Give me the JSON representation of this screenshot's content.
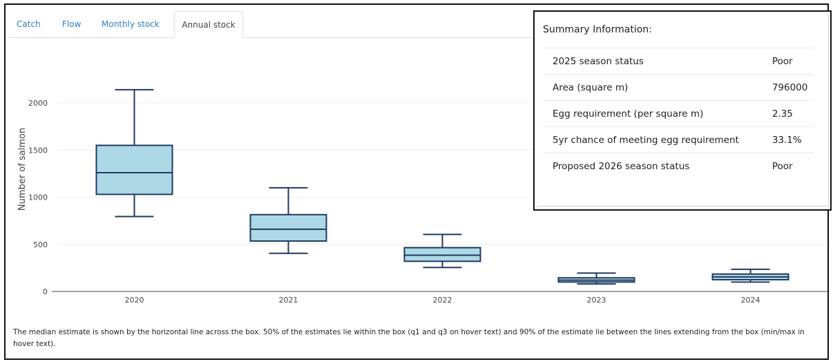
{
  "tabs": [
    {
      "label": "Catch"
    },
    {
      "label": "Flow"
    },
    {
      "label": "Monthly stock"
    },
    {
      "label": "Annual stock"
    }
  ],
  "active_tab": "Annual stock",
  "summary": {
    "title": "Summary Information:",
    "rows": [
      {
        "label": "2025 season status",
        "value": "Poor"
      },
      {
        "label": "Area (square m)",
        "value": "796000"
      },
      {
        "label": "Egg requirement (per square m)",
        "value": "2.35"
      },
      {
        "label": "5yr chance of meeting egg requirement",
        "value": "33.1%"
      },
      {
        "label": "Proposed 2026 season status",
        "value": "Poor"
      }
    ]
  },
  "note": "The median estimate is shown by the horizontal line across the box. 50% of the estimates lie within the box (q1 and q3 on hover text) and 90% of the estimate lie between the lines extending from the box (min/max in hover text).",
  "chart_data": {
    "type": "box",
    "ylabel": "Number of salmon",
    "yticks": [
      0,
      500,
      1000,
      1500,
      2000
    ],
    "ylim": [
      0,
      2300
    ],
    "grid": true,
    "box_fill": "#add8e6",
    "box_stroke": "#1f3a5f",
    "categories": [
      "2020",
      "2021",
      "2022",
      "2023",
      "2024"
    ],
    "boxes": [
      {
        "x": "2020",
        "min": 795,
        "q1": 1030,
        "median": 1260,
        "q3": 1550,
        "max": 2140
      },
      {
        "x": "2021",
        "min": 405,
        "q1": 535,
        "median": 660,
        "q3": 815,
        "max": 1100
      },
      {
        "x": "2022",
        "min": 255,
        "q1": 320,
        "median": 385,
        "q3": 465,
        "max": 605
      },
      {
        "x": "2023",
        "min": 80,
        "q1": 100,
        "median": 120,
        "q3": 145,
        "max": 195
      },
      {
        "x": "2024",
        "min": 100,
        "q1": 125,
        "median": 155,
        "q3": 185,
        "max": 235
      }
    ]
  }
}
